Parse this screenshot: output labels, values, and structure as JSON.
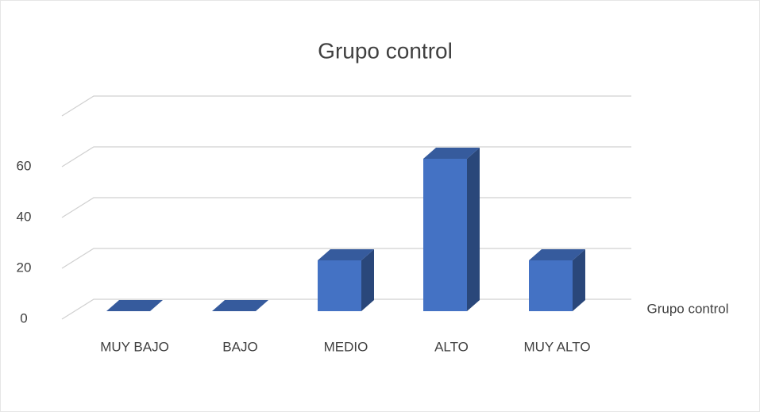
{
  "chart_data": {
    "type": "bar3d",
    "title": "Grupo control",
    "categories": [
      "MUY BAJO",
      "BAJO",
      "MEDIO",
      "ALTO",
      "MUY ALTO"
    ],
    "series": [
      {
        "name": "Grupo control",
        "color": "#4472c4",
        "values": [
          0,
          0,
          20,
          60,
          20
        ]
      }
    ],
    "ylim": [
      0,
      80
    ],
    "yticks": [
      0,
      20,
      40,
      60
    ],
    "grid": true,
    "legend": "right"
  }
}
